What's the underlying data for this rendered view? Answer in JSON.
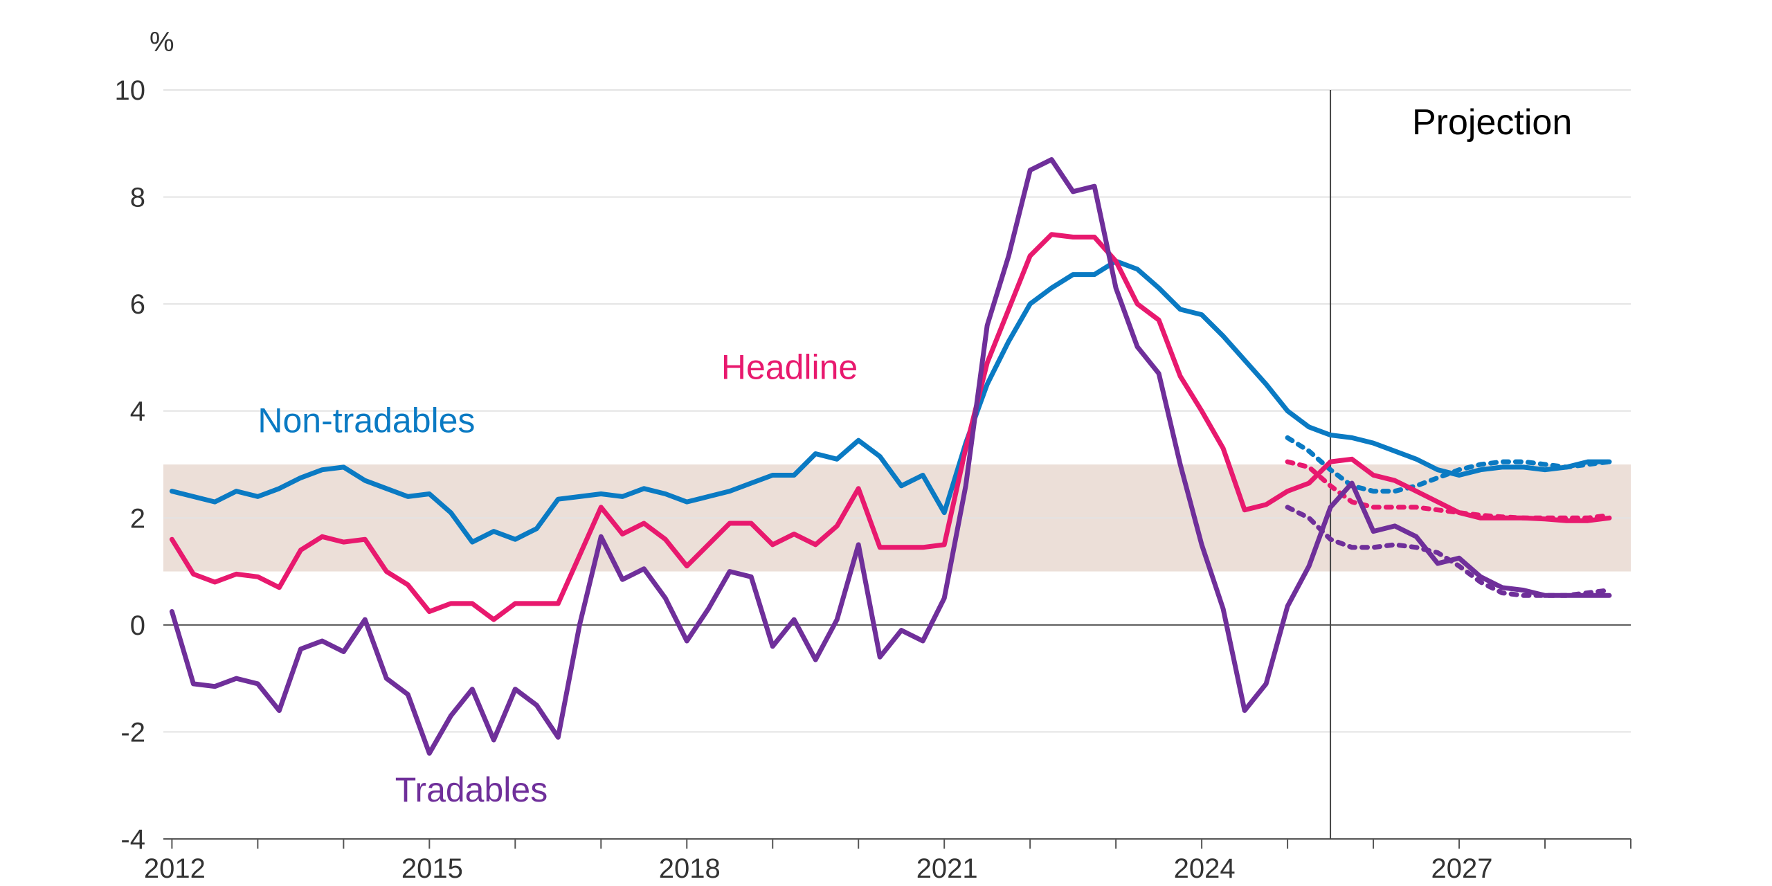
{
  "chart_data": {
    "type": "line",
    "unit_label": "%",
    "projection_label": "Projection",
    "projection_start": 2025.5,
    "xlim": [
      2011.9,
      2029.0
    ],
    "ylim": [
      -4,
      10
    ],
    "yticks": [
      -4,
      -2,
      0,
      2,
      4,
      6,
      8,
      10
    ],
    "xticks": [
      2012,
      2015,
      2018,
      2021,
      2024,
      2027
    ],
    "xtick_labels": [
      "2012",
      "2015",
      "2018",
      "2021",
      "2024",
      "2027"
    ],
    "grid": true,
    "target_band": {
      "low": 1,
      "high": 3,
      "color": "#ecdfd8"
    },
    "colors": {
      "Non-tradables": "#0a7ac3",
      "Headline": "#e8196e",
      "Tradables": "#6f2f9a",
      "axis": "#333333",
      "grid": "#e3e3e3"
    },
    "series": [
      {
        "name": "Non-tradables",
        "label_pos": [
          2013.0,
          3.6
        ],
        "x": [
          2012.0,
          2012.25,
          2012.5,
          2012.75,
          2013.0,
          2013.25,
          2013.5,
          2013.75,
          2014.0,
          2014.25,
          2014.5,
          2014.75,
          2015.0,
          2015.25,
          2015.5,
          2015.75,
          2016.0,
          2016.25,
          2016.5,
          2016.75,
          2017.0,
          2017.25,
          2017.5,
          2017.75,
          2018.0,
          2018.25,
          2018.5,
          2018.75,
          2019.0,
          2019.25,
          2019.5,
          2019.75,
          2020.0,
          2020.25,
          2020.5,
          2020.75,
          2021.0,
          2021.25,
          2021.5,
          2021.75,
          2022.0,
          2022.25,
          2022.5,
          2022.75,
          2023.0,
          2023.25,
          2023.5,
          2023.75,
          2024.0,
          2024.25,
          2024.5,
          2024.75,
          2025.0,
          2025.25,
          2025.5,
          2025.75,
          2026.0,
          2026.25,
          2026.5,
          2026.75,
          2027.0,
          2027.25,
          2027.5,
          2027.75,
          2028.0,
          2028.25,
          2028.5,
          2028.75
        ],
        "values": [
          2.5,
          2.4,
          2.3,
          2.5,
          2.4,
          2.55,
          2.75,
          2.9,
          2.95,
          2.7,
          2.55,
          2.4,
          2.45,
          2.1,
          1.55,
          1.75,
          1.6,
          1.8,
          2.35,
          2.4,
          2.45,
          2.4,
          2.55,
          2.45,
          2.3,
          2.4,
          2.5,
          2.65,
          2.8,
          2.8,
          3.2,
          3.1,
          3.45,
          3.15,
          2.6,
          2.8,
          2.1,
          3.4,
          4.5,
          5.3,
          6.0,
          6.3,
          6.55,
          6.55,
          6.8,
          6.65,
          6.3,
          5.9,
          5.8,
          5.4,
          4.95,
          4.5,
          4.0,
          3.7,
          3.55,
          3.5,
          3.4,
          3.25,
          3.1,
          2.9,
          2.8,
          2.9,
          2.95,
          2.95,
          2.9,
          2.95,
          3.05,
          3.05
        ],
        "projection_alt": {
          "x": [
            2025.0,
            2025.25,
            2025.5,
            2025.75,
            2026.0,
            2026.25,
            2026.5,
            2026.75,
            2027.0,
            2027.25,
            2027.5,
            2027.75,
            2028.0,
            2028.25,
            2028.5,
            2028.75
          ],
          "values": [
            3.5,
            3.25,
            2.9,
            2.6,
            2.5,
            2.5,
            2.6,
            2.75,
            2.9,
            3.0,
            3.05,
            3.05,
            3.0,
            2.95,
            3.0,
            3.05
          ]
        }
      },
      {
        "name": "Headline",
        "label_pos": [
          2018.4,
          4.6
        ],
        "x": [
          2012.0,
          2012.25,
          2012.5,
          2012.75,
          2013.0,
          2013.25,
          2013.5,
          2013.75,
          2014.0,
          2014.25,
          2014.5,
          2014.75,
          2015.0,
          2015.25,
          2015.5,
          2015.75,
          2016.0,
          2016.25,
          2016.5,
          2016.75,
          2017.0,
          2017.25,
          2017.5,
          2017.75,
          2018.0,
          2018.25,
          2018.5,
          2018.75,
          2019.0,
          2019.25,
          2019.5,
          2019.75,
          2020.0,
          2020.25,
          2020.5,
          2020.75,
          2021.0,
          2021.25,
          2021.5,
          2021.75,
          2022.0,
          2022.25,
          2022.5,
          2022.75,
          2023.0,
          2023.25,
          2023.5,
          2023.75,
          2024.0,
          2024.25,
          2024.5,
          2024.75,
          2025.0,
          2025.25,
          2025.5,
          2025.75,
          2026.0,
          2026.25,
          2026.5,
          2026.75,
          2027.0,
          2027.25,
          2027.5,
          2027.75,
          2028.0,
          2028.25,
          2028.5,
          2028.75
        ],
        "values": [
          1.6,
          0.95,
          0.8,
          0.95,
          0.9,
          0.7,
          1.4,
          1.65,
          1.55,
          1.6,
          1.0,
          0.75,
          0.25,
          0.4,
          0.4,
          0.1,
          0.4,
          0.4,
          0.4,
          1.3,
          2.2,
          1.7,
          1.9,
          1.6,
          1.1,
          1.5,
          1.9,
          1.9,
          1.5,
          1.7,
          1.5,
          1.85,
          2.55,
          1.45,
          1.45,
          1.45,
          1.5,
          3.3,
          4.9,
          5.9,
          6.9,
          7.3,
          7.25,
          7.25,
          6.8,
          6.0,
          5.7,
          4.65,
          4.0,
          3.3,
          2.15,
          2.25,
          2.5,
          2.65,
          3.05,
          3.1,
          2.8,
          2.7,
          2.5,
          2.3,
          2.1,
          2.0,
          2.0,
          2.0,
          1.98,
          1.95,
          1.95,
          2.0
        ],
        "projection_alt": {
          "x": [
            2025.0,
            2025.25,
            2025.5,
            2025.75,
            2026.0,
            2026.25,
            2026.5,
            2026.75,
            2027.0,
            2027.25,
            2027.5,
            2027.75,
            2028.0,
            2028.25,
            2028.5,
            2028.75
          ],
          "values": [
            3.05,
            2.95,
            2.6,
            2.3,
            2.2,
            2.2,
            2.2,
            2.15,
            2.1,
            2.05,
            2.02,
            2.0,
            2.0,
            2.0,
            2.0,
            2.05
          ]
        }
      },
      {
        "name": "Tradables",
        "label_pos": [
          2014.6,
          -3.3
        ],
        "x": [
          2012.0,
          2012.25,
          2012.5,
          2012.75,
          2013.0,
          2013.25,
          2013.5,
          2013.75,
          2014.0,
          2014.25,
          2014.5,
          2014.75,
          2015.0,
          2015.25,
          2015.5,
          2015.75,
          2016.0,
          2016.25,
          2016.5,
          2016.75,
          2017.0,
          2017.25,
          2017.5,
          2017.75,
          2018.0,
          2018.25,
          2018.5,
          2018.75,
          2019.0,
          2019.25,
          2019.5,
          2019.75,
          2020.0,
          2020.25,
          2020.5,
          2020.75,
          2021.0,
          2021.25,
          2021.5,
          2021.75,
          2022.0,
          2022.25,
          2022.5,
          2022.75,
          2023.0,
          2023.25,
          2023.5,
          2023.75,
          2024.0,
          2024.25,
          2024.5,
          2024.75,
          2025.0,
          2025.25,
          2025.5,
          2025.75,
          2026.0,
          2026.25,
          2026.5,
          2026.75,
          2027.0,
          2027.25,
          2027.5,
          2027.75,
          2028.0,
          2028.25,
          2028.5,
          2028.75
        ],
        "values": [
          0.25,
          -1.1,
          -1.15,
          -1.0,
          -1.1,
          -1.6,
          -0.45,
          -0.3,
          -0.5,
          0.1,
          -1.0,
          -1.3,
          -2.4,
          -1.7,
          -1.2,
          -2.15,
          -1.2,
          -1.5,
          -2.1,
          0.0,
          1.65,
          0.85,
          1.05,
          0.5,
          -0.3,
          0.3,
          1.0,
          0.9,
          -0.4,
          0.1,
          -0.65,
          0.1,
          1.5,
          -0.6,
          -0.1,
          -0.3,
          0.5,
          2.6,
          5.6,
          6.9,
          8.5,
          8.7,
          8.1,
          8.2,
          6.3,
          5.2,
          4.7,
          3.0,
          1.5,
          0.3,
          -1.6,
          -1.1,
          0.35,
          1.1,
          2.2,
          2.65,
          1.75,
          1.85,
          1.65,
          1.15,
          1.25,
          0.9,
          0.7,
          0.65,
          0.55,
          0.55,
          0.55,
          0.55
        ],
        "projection_alt": {
          "x": [
            2025.0,
            2025.25,
            2025.5,
            2025.75,
            2026.0,
            2026.25,
            2026.5,
            2026.75,
            2027.0,
            2027.25,
            2027.5,
            2027.75,
            2028.0,
            2028.25,
            2028.5,
            2028.75
          ],
          "values": [
            2.2,
            2.0,
            1.6,
            1.45,
            1.45,
            1.5,
            1.45,
            1.35,
            1.1,
            0.8,
            0.6,
            0.55,
            0.55,
            0.55,
            0.6,
            0.65
          ]
        }
      }
    ]
  }
}
